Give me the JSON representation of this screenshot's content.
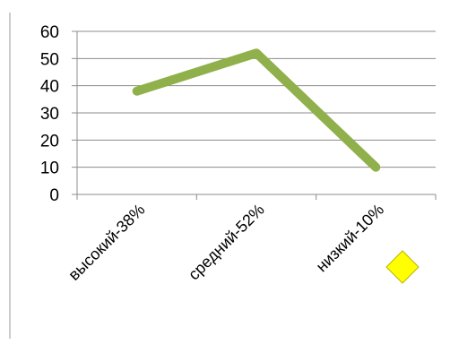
{
  "chart_data": {
    "type": "line",
    "categories": [
      "высокий-38%",
      "средний-52%",
      "низкий-10%"
    ],
    "series": [
      {
        "values": [
          38,
          52,
          10
        ],
        "color": "#8fb04a"
      }
    ],
    "y_ticks": [
      "0",
      "10",
      "20",
      "30",
      "40",
      "50",
      "60"
    ],
    "ylim": [
      0,
      60
    ],
    "grid": true,
    "legend": {
      "marker": "diamond",
      "color": "#ffff00",
      "border": "#b8b800"
    }
  }
}
